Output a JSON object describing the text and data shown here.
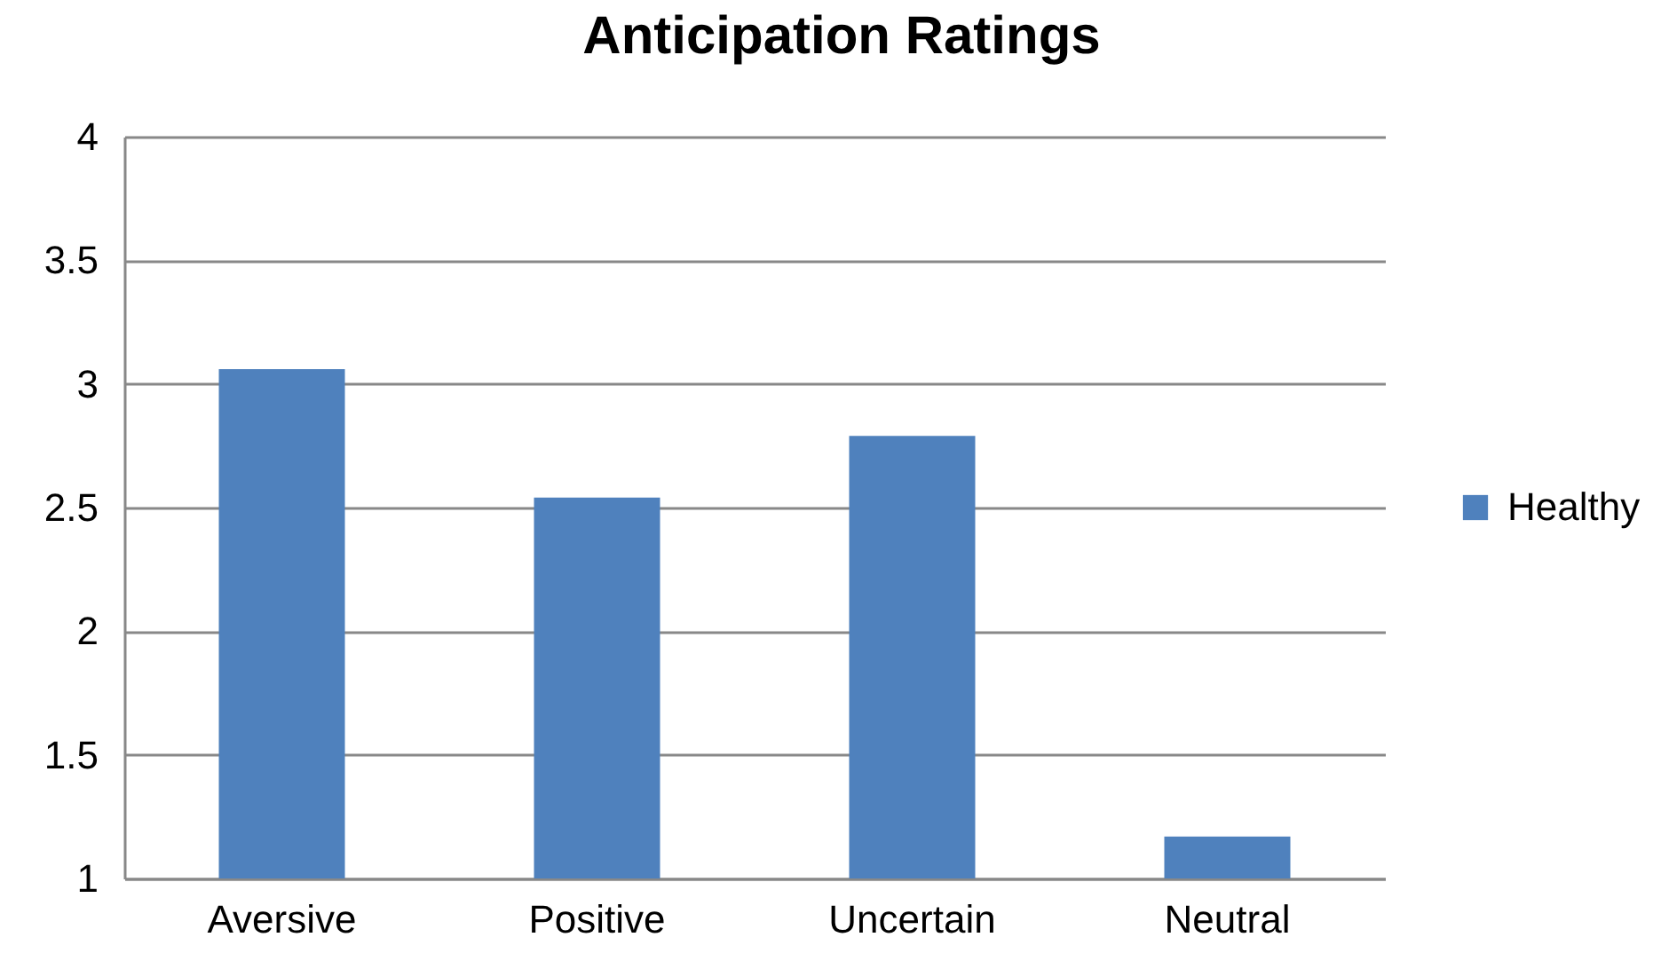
{
  "chart_data": {
    "type": "bar",
    "title": "Anticipation Ratings",
    "categories": [
      "Aversive",
      "Positive",
      "Uncertain",
      "Neutral"
    ],
    "series": [
      {
        "name": "Healthy",
        "color": "#4f81bd",
        "values": [
          3.06,
          2.54,
          2.79,
          1.17
        ]
      }
    ],
    "ylim": [
      1,
      4
    ],
    "yticks": [
      1,
      1.5,
      2,
      2.5,
      3,
      3.5,
      4
    ],
    "grid": "y",
    "legend": "right"
  }
}
